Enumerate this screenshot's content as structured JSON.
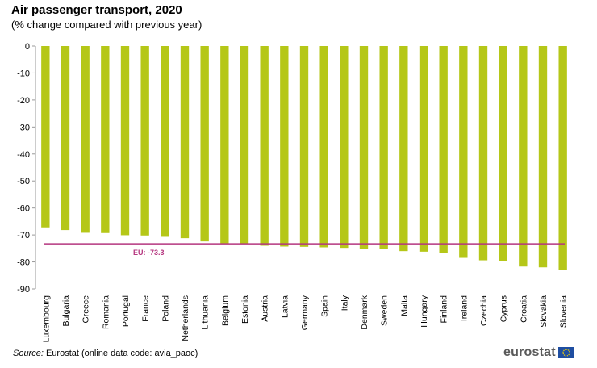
{
  "chart_data": {
    "type": "bar",
    "title": "Air passenger transport, 2020",
    "subtitle": "(% change compared with previous year)",
    "xlabel": "",
    "ylabel": "",
    "ylim": [
      -90,
      0
    ],
    "yticks": [
      0,
      -10,
      -20,
      -30,
      -40,
      -50,
      -60,
      -70,
      -80,
      -90
    ],
    "grid": false,
    "categories": [
      "Luxembourg",
      "Bulgaria",
      "Greece",
      "Romania",
      "Portugal",
      "France",
      "Poland",
      "Netherlands",
      "Lithuania",
      "Belgium",
      "Estonia",
      "Austria",
      "Latvia",
      "Germany",
      "Spain",
      "Italy",
      "Denmark",
      "Sweden",
      "Malta",
      "Hungary",
      "Finland",
      "Ireland",
      "Czechia",
      "Cyprus",
      "Croatia",
      "Slovakia",
      "Slovenia"
    ],
    "values": [
      -67.2,
      -68.2,
      -69.2,
      -69.3,
      -70.1,
      -70.2,
      -70.7,
      -71.2,
      -72.4,
      -73.1,
      -73.2,
      -74.0,
      -74.3,
      -74.4,
      -74.6,
      -74.8,
      -75.1,
      -75.2,
      -76.0,
      -76.2,
      -76.6,
      -78.5,
      -79.4,
      -79.6,
      -81.7,
      -82.0,
      -83.0
    ],
    "bar_color": "#b5c718",
    "reference_line": {
      "label": "EU: -73.3",
      "value": -73.3,
      "color": "#b5367f"
    }
  },
  "footer": {
    "source_label": "Source:",
    "source_text": " Eurostat (online data code: avia_paoc)",
    "logo_text": "eurostat"
  },
  "icons": {
    "logo_flag": "eu-flag-icon"
  }
}
